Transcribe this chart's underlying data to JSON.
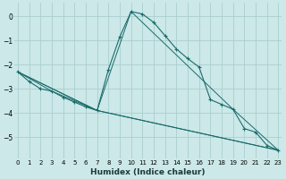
{
  "xlabel": "Humidex (Indice chaleur)",
  "background_color": "#cce8e8",
  "grid_color": "#aacece",
  "line_color": "#1a6b6b",
  "series_main": [
    [
      0,
      -2.3
    ],
    [
      1,
      -2.7
    ],
    [
      2,
      -3.0
    ],
    [
      3,
      -3.1
    ],
    [
      4,
      -3.35
    ],
    [
      5,
      -3.55
    ],
    [
      6,
      -3.75
    ],
    [
      7,
      -3.9
    ],
    [
      8,
      -2.2
    ],
    [
      9,
      -0.85
    ],
    [
      10,
      0.2
    ],
    [
      11,
      0.1
    ],
    [
      12,
      -0.25
    ],
    [
      13,
      -0.8
    ],
    [
      14,
      -1.35
    ],
    [
      15,
      -1.75
    ],
    [
      16,
      -2.1
    ],
    [
      17,
      -3.45
    ],
    [
      18,
      -3.65
    ],
    [
      19,
      -3.85
    ],
    [
      20,
      -4.65
    ],
    [
      21,
      -4.8
    ],
    [
      22,
      -5.35
    ],
    [
      23,
      -5.55
    ]
  ],
  "series_line2": [
    [
      0,
      -2.3
    ],
    [
      7,
      -3.9
    ],
    [
      10,
      0.2
    ],
    [
      19,
      -3.85
    ],
    [
      23,
      -5.55
    ]
  ],
  "series_line3": [
    [
      0,
      -2.3
    ],
    [
      3,
      -3.1
    ],
    [
      7,
      -3.9
    ],
    [
      23,
      -5.55
    ]
  ],
  "series_line4": [
    [
      0,
      -2.3
    ],
    [
      7,
      -3.9
    ],
    [
      23,
      -5.55
    ]
  ],
  "xlim": [
    -0.3,
    23.3
  ],
  "ylim": [
    -5.9,
    0.55
  ],
  "xticks": [
    0,
    1,
    2,
    3,
    4,
    5,
    6,
    7,
    8,
    9,
    10,
    11,
    12,
    13,
    14,
    15,
    16,
    17,
    18,
    19,
    20,
    21,
    22,
    23
  ],
  "yticks": [
    0,
    -1,
    -2,
    -3,
    -4,
    -5
  ],
  "tick_fontsize": 5.0,
  "xlabel_fontsize": 6.5
}
